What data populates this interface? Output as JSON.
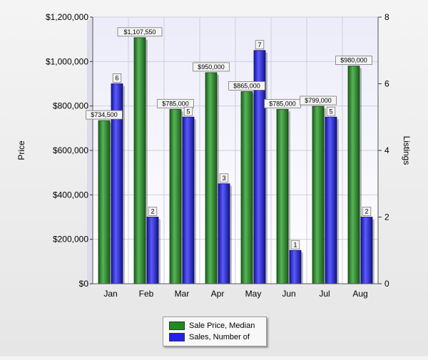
{
  "chart_data": {
    "type": "bar",
    "categories": [
      "Jan",
      "Feb",
      "Mar",
      "Apr",
      "May",
      "Jun",
      "Jul",
      "Aug"
    ],
    "series": [
      {
        "name": "Sale Price, Median",
        "axis": "left",
        "color": "#2f8a2f",
        "values": [
          734500,
          1107550,
          785000,
          950000,
          865000,
          785000,
          799000,
          980000
        ],
        "labels": [
          "$734,500",
          "$1,107,550",
          "$785,000",
          "$950,000",
          "$865,000",
          "$785,000",
          "$799,000",
          "$980,000"
        ]
      },
      {
        "name": "Sales, Number of",
        "axis": "right",
        "color": "#2a2ad6",
        "values": [
          6,
          2,
          5,
          3,
          7,
          1,
          5,
          2
        ],
        "labels": [
          "6",
          "2",
          "5",
          "3",
          "7",
          "1",
          "5",
          "2"
        ]
      }
    ],
    "ylabel": "Price",
    "y2label": "Listings",
    "ylim": [
      0,
      1200000
    ],
    "y2lim": [
      0,
      8
    ],
    "yticks": [
      "$0",
      "$200,000",
      "$400,000",
      "$600,000",
      "$800,000",
      "$1,000,000",
      "$1,200,000"
    ],
    "y2ticks": [
      "0",
      "2",
      "4",
      "6",
      "8"
    ],
    "grid": true,
    "legend_position": "bottom-center"
  }
}
